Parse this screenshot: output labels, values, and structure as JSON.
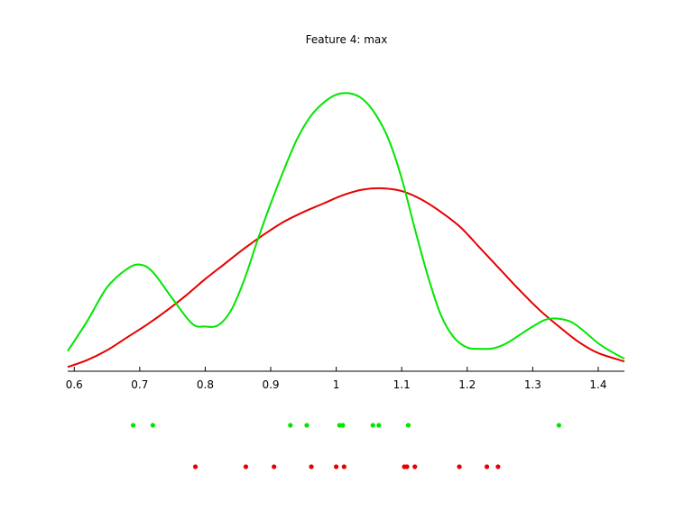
{
  "chart_data": {
    "type": "line",
    "title": "Feature 4: max",
    "xlabel": "",
    "ylabel": "",
    "xlim": [
      0.59,
      1.44
    ],
    "ylim": [
      0,
      1
    ],
    "grid": false,
    "xticks": [
      0.6,
      0.7,
      0.8,
      0.9,
      1.0,
      1.1,
      1.2,
      1.3,
      1.4
    ],
    "xtick_labels": [
      "0.6",
      "0.7",
      "0.8",
      "0.9",
      "1",
      "1.1",
      "1.2",
      "1.3",
      "1.4"
    ],
    "series": [
      {
        "color": "#00e600",
        "x": [
          0.59,
          0.62,
          0.65,
          0.68,
          0.7,
          0.72,
          0.75,
          0.78,
          0.8,
          0.82,
          0.84,
          0.86,
          0.88,
          0.9,
          0.92,
          0.94,
          0.96,
          0.98,
          1.0,
          1.02,
          1.04,
          1.06,
          1.08,
          1.1,
          1.12,
          1.14,
          1.16,
          1.18,
          1.2,
          1.22,
          1.24,
          1.26,
          1.28,
          1.3,
          1.32,
          1.34,
          1.36,
          1.38,
          1.4,
          1.42,
          1.44
        ],
        "y": [
          0.072,
          0.18,
          0.3,
          0.365,
          0.382,
          0.355,
          0.26,
          0.17,
          0.16,
          0.165,
          0.22,
          0.33,
          0.47,
          0.6,
          0.72,
          0.83,
          0.91,
          0.96,
          0.99,
          0.995,
          0.975,
          0.92,
          0.83,
          0.69,
          0.51,
          0.34,
          0.2,
          0.12,
          0.085,
          0.08,
          0.082,
          0.1,
          0.13,
          0.16,
          0.185,
          0.188,
          0.175,
          0.14,
          0.1,
          0.07,
          0.045
        ]
      },
      {
        "color": "#e60000",
        "x": [
          0.59,
          0.62,
          0.65,
          0.68,
          0.71,
          0.74,
          0.77,
          0.8,
          0.83,
          0.86,
          0.89,
          0.92,
          0.95,
          0.98,
          1.01,
          1.04,
          1.07,
          1.1,
          1.13,
          1.16,
          1.19,
          1.22,
          1.25,
          1.28,
          1.31,
          1.34,
          1.37,
          1.4,
          1.44
        ],
        "y": [
          0.015,
          0.04,
          0.075,
          0.12,
          0.165,
          0.215,
          0.27,
          0.33,
          0.385,
          0.44,
          0.49,
          0.535,
          0.57,
          0.6,
          0.63,
          0.65,
          0.655,
          0.645,
          0.615,
          0.57,
          0.515,
          0.44,
          0.365,
          0.29,
          0.22,
          0.16,
          0.105,
          0.065,
          0.035
        ]
      }
    ],
    "points": [
      {
        "color": "#00e600",
        "x": [
          0.69,
          0.72,
          0.93,
          0.955,
          1.005,
          1.01,
          1.056,
          1.065,
          1.11,
          1.34
        ]
      },
      {
        "color": "#e60000",
        "x": [
          0.785,
          0.862,
          0.905,
          0.962,
          1.0,
          1.012,
          1.104,
          1.108,
          1.12,
          1.188,
          1.23,
          1.247
        ]
      }
    ]
  }
}
